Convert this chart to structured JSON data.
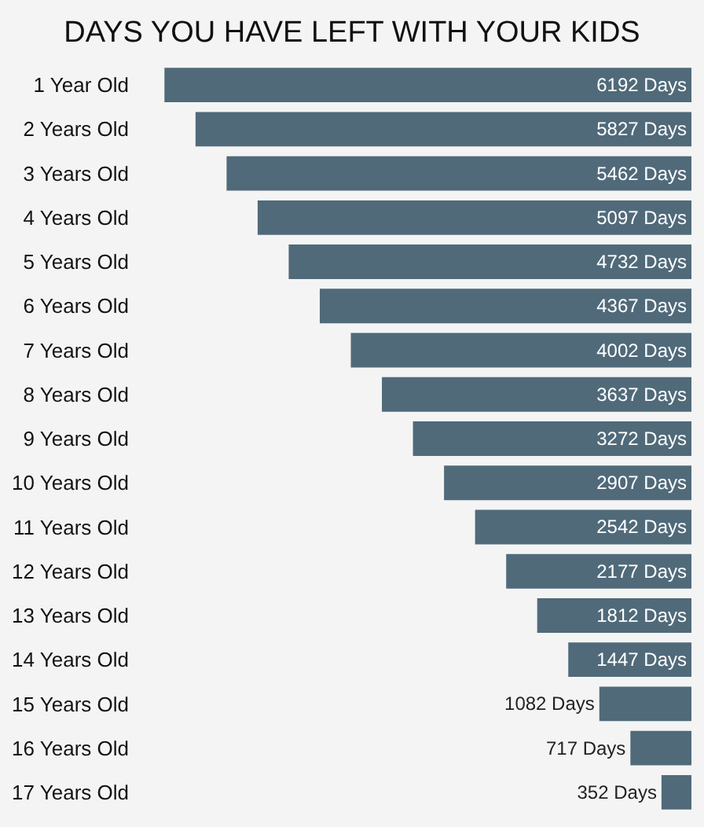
{
  "chart_data": {
    "type": "bar",
    "orientation": "horizontal",
    "title": "DAYS YOU HAVE LEFT WITH YOUR KIDS",
    "categories": [
      "1 Year Old",
      "2 Years Old",
      "3 Years Old",
      "4 Years Old",
      "5 Years Old",
      "6 Years Old",
      "7 Years Old",
      "8 Years Old",
      "9 Years Old",
      "10 Years Old",
      "11 Years Old",
      "12 Years Old",
      "13 Years Old",
      "14 Years Old",
      "15 Years Old",
      "16 Years Old",
      "17 Years Old"
    ],
    "values": [
      6192,
      5827,
      5462,
      5097,
      4732,
      4367,
      4002,
      3637,
      3272,
      2907,
      2542,
      2177,
      1812,
      1447,
      1082,
      717,
      352
    ],
    "value_labels": [
      "6192 Days",
      "5827 Days",
      "5462 Days",
      "5097 Days",
      "4732 Days",
      "4367 Days",
      "4002 Days",
      "3637 Days",
      "3272 Days",
      "2907 Days",
      "2542 Days",
      "2177 Days",
      "1812 Days",
      "1447 Days",
      "1082 Days",
      "717 Days",
      "352 Days"
    ],
    "color": "#506a7a",
    "grid": false
  }
}
